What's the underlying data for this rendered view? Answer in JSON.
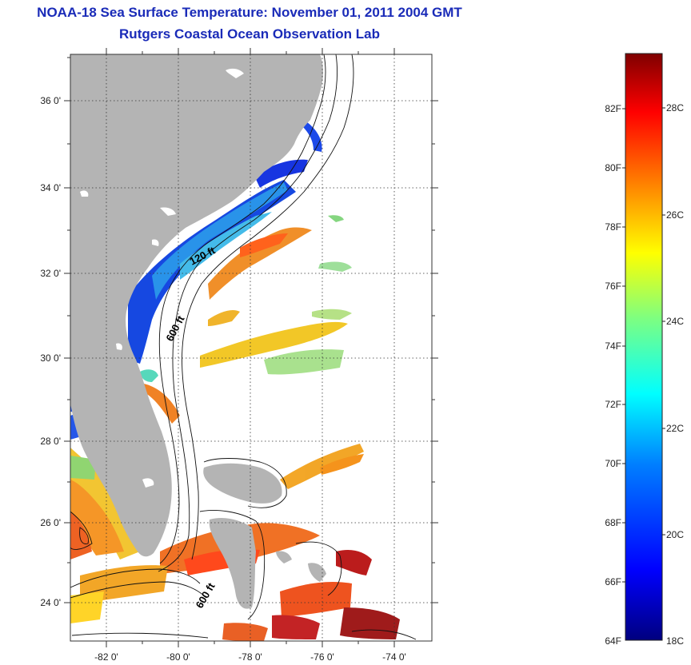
{
  "title": {
    "line1": "NOAA-18 Sea Surface Temperature:  November 01, 2011 2004 GMT",
    "line2": "Rutgers Coastal Ocean Observation Lab"
  },
  "map": {
    "lat_labels": [
      "36 0'",
      "34 0'",
      "32 0'",
      "30 0'",
      "28 0'",
      "26 0'",
      "24 0'"
    ],
    "lon_labels": [
      "-82 0'",
      "-80 0'",
      "-78 0'",
      "-76 0'",
      "-74 0'"
    ],
    "contour_labels": [
      "120 ft",
      "600 ft",
      "600 ft"
    ],
    "land_color": "#b4b4b4"
  },
  "colorbar": {
    "f_labels": [
      "82F",
      "80F",
      "78F",
      "76F",
      "74F",
      "72F",
      "70F",
      "68F",
      "66F",
      "64F"
    ],
    "c_labels": [
      "28C",
      "26C",
      "24C",
      "22C",
      "20C",
      "18C"
    ],
    "colors": [
      "#00007f",
      "#0000ff",
      "#007fff",
      "#00ffff",
      "#7fff7f",
      "#ffff00",
      "#ff7f00",
      "#ff0000",
      "#7f0000"
    ]
  }
}
